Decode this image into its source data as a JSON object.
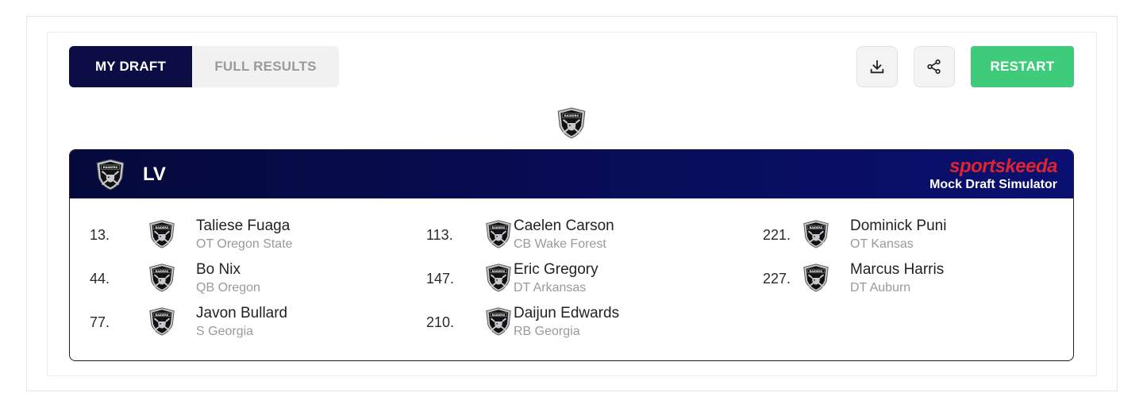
{
  "tabs": [
    {
      "label": "MY DRAFT",
      "active": true
    },
    {
      "label": "FULL RESULTS",
      "active": false
    }
  ],
  "actions": {
    "download_icon": "download-icon",
    "share_icon": "share-icon",
    "restart_label": "RESTART"
  },
  "team": {
    "abbr": "LV",
    "logo_icon": "raiders-shield-icon"
  },
  "brand": {
    "name": "sportskeeda",
    "subtitle": "Mock Draft Simulator"
  },
  "colors": {
    "header_navy": "#0b0d44",
    "restart_green": "#3ecb7a",
    "brand_red": "#e0232f"
  },
  "picks": [
    {
      "number": "13.",
      "name": "Taliese Fuaga",
      "detail": "OT Oregon State"
    },
    {
      "number": "44.",
      "name": "Bo Nix",
      "detail": "QB Oregon"
    },
    {
      "number": "77.",
      "name": "Javon Bullard",
      "detail": "S Georgia"
    },
    {
      "number": "113.",
      "name": "Caelen Carson",
      "detail": "CB Wake Forest"
    },
    {
      "number": "147.",
      "name": "Eric Gregory",
      "detail": "DT Arkansas"
    },
    {
      "number": "210.",
      "name": "Daijun Edwards",
      "detail": "RB Georgia"
    },
    {
      "number": "221.",
      "name": "Dominick Puni",
      "detail": "OT Kansas"
    },
    {
      "number": "227.",
      "name": "Marcus Harris",
      "detail": "DT Auburn"
    }
  ]
}
